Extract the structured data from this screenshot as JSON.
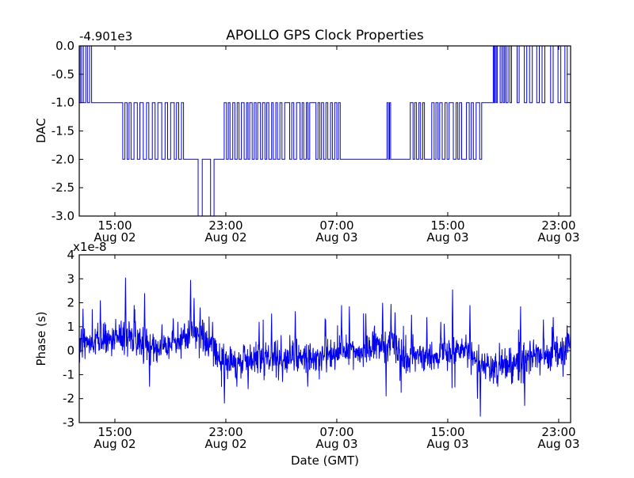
{
  "figure_title": "APOLLO GPS Clock Properties",
  "accent_color": "#0000ee",
  "chart_data": [
    {
      "type": "line",
      "subtype": "step",
      "title": "APOLLO GPS Clock Properties",
      "ylabel": "DAC",
      "xlabel": "",
      "offset_text": "-4.901e3",
      "y_offset_value": -4901,
      "ylim": [
        -3.0,
        0.0
      ],
      "yticks": [
        {
          "v": 0.0,
          "label": "0.0"
        },
        {
          "v": -0.5,
          "label": "-0.5"
        },
        {
          "v": -1.0,
          "label": "-1.0"
        },
        {
          "v": -1.5,
          "label": "-1.5"
        },
        {
          "v": -2.0,
          "label": "-2.0"
        },
        {
          "v": -2.5,
          "label": "-2.5"
        },
        {
          "v": -3.0,
          "label": "-3.0"
        }
      ],
      "x_unit": "hours since Aug 02 00:00 GMT",
      "xlim_hours": [
        12.43,
        47.86
      ],
      "xticks": [
        {
          "t": 15,
          "time": "15:00",
          "date": "Aug 02"
        },
        {
          "t": 23,
          "time": "23:00",
          "date": "Aug 02"
        },
        {
          "t": 31,
          "time": "07:00",
          "date": "Aug 03"
        },
        {
          "t": 39,
          "time": "15:00",
          "date": "Aug 03"
        },
        {
          "t": 47,
          "time": "23:00",
          "date": "Aug 03"
        }
      ],
      "grid": false,
      "legend": null,
      "step_points": [
        [
          12.43,
          0
        ],
        [
          12.5,
          -1
        ],
        [
          12.6,
          0
        ],
        [
          12.73,
          -1
        ],
        [
          12.9,
          0
        ],
        [
          13.02,
          -1
        ],
        [
          13.18,
          0
        ],
        [
          13.32,
          -1
        ],
        [
          15.57,
          -2
        ],
        [
          15.72,
          -1
        ],
        [
          15.88,
          -2
        ],
        [
          16.02,
          -1
        ],
        [
          16.17,
          -2
        ],
        [
          16.38,
          -1
        ],
        [
          16.62,
          -2
        ],
        [
          16.8,
          -1
        ],
        [
          17.05,
          -2
        ],
        [
          17.28,
          -1
        ],
        [
          17.45,
          -2
        ],
        [
          17.7,
          -1
        ],
        [
          17.9,
          -2
        ],
        [
          18.1,
          -1
        ],
        [
          18.38,
          -2
        ],
        [
          18.62,
          -1
        ],
        [
          18.8,
          -2
        ],
        [
          19.02,
          -1
        ],
        [
          19.28,
          -2
        ],
        [
          19.45,
          -1
        ],
        [
          19.6,
          -2
        ],
        [
          19.8,
          -1
        ],
        [
          19.95,
          -2
        ],
        [
          21.0,
          -3
        ],
        [
          21.3,
          -2
        ],
        [
          21.9,
          -3
        ],
        [
          22.15,
          -2
        ],
        [
          22.88,
          -1
        ],
        [
          23.05,
          -2
        ],
        [
          23.18,
          -1
        ],
        [
          23.3,
          -2
        ],
        [
          23.5,
          -1
        ],
        [
          23.65,
          -2
        ],
        [
          23.82,
          -1
        ],
        [
          23.95,
          -2
        ],
        [
          24.12,
          -1
        ],
        [
          24.32,
          -2
        ],
        [
          24.5,
          -1
        ],
        [
          24.6,
          -2
        ],
        [
          24.72,
          -1
        ],
        [
          24.9,
          -2
        ],
        [
          25.05,
          -1
        ],
        [
          25.18,
          -2
        ],
        [
          25.3,
          -1
        ],
        [
          25.5,
          -2
        ],
        [
          25.65,
          -1
        ],
        [
          25.82,
          -2
        ],
        [
          25.95,
          -1
        ],
        [
          26.1,
          -2
        ],
        [
          26.3,
          -1
        ],
        [
          26.42,
          -2
        ],
        [
          26.6,
          -1
        ],
        [
          26.72,
          -2
        ],
        [
          26.9,
          -1
        ],
        [
          27.05,
          -2
        ],
        [
          27.25,
          -1
        ],
        [
          27.6,
          -2
        ],
        [
          27.75,
          -1
        ],
        [
          27.9,
          -2
        ],
        [
          28.1,
          -1
        ],
        [
          28.35,
          -2
        ],
        [
          28.5,
          -1
        ],
        [
          28.62,
          -2
        ],
        [
          28.8,
          -1
        ],
        [
          28.92,
          -2
        ],
        [
          29.05,
          -1
        ],
        [
          29.5,
          -2
        ],
        [
          29.65,
          -1
        ],
        [
          29.78,
          -2
        ],
        [
          29.9,
          -1
        ],
        [
          30.05,
          -2
        ],
        [
          30.22,
          -1
        ],
        [
          30.35,
          -2
        ],
        [
          30.55,
          -1
        ],
        [
          30.68,
          -2
        ],
        [
          30.85,
          -1
        ],
        [
          31.0,
          -2
        ],
        [
          31.12,
          -1
        ],
        [
          31.25,
          -2
        ],
        [
          34.62,
          -1
        ],
        [
          34.72,
          -2
        ],
        [
          34.8,
          -1
        ],
        [
          34.88,
          -2
        ],
        [
          36.3,
          -1
        ],
        [
          36.5,
          -2
        ],
        [
          36.62,
          -1
        ],
        [
          36.75,
          -2
        ],
        [
          36.92,
          -1
        ],
        [
          37.05,
          -2
        ],
        [
          37.2,
          -1
        ],
        [
          37.32,
          -2
        ],
        [
          37.85,
          -1
        ],
        [
          38.02,
          -2
        ],
        [
          38.15,
          -1
        ],
        [
          38.3,
          -2
        ],
        [
          38.42,
          -1
        ],
        [
          38.6,
          -2
        ],
        [
          38.8,
          -1
        ],
        [
          38.95,
          -2
        ],
        [
          39.1,
          -1
        ],
        [
          39.4,
          -2
        ],
        [
          39.6,
          -1
        ],
        [
          39.72,
          -2
        ],
        [
          39.85,
          -1
        ],
        [
          40.0,
          -2
        ],
        [
          40.35,
          -1
        ],
        [
          40.55,
          -2
        ],
        [
          40.7,
          -1
        ],
        [
          40.85,
          -2
        ],
        [
          41.05,
          -1
        ],
        [
          41.3,
          -2
        ],
        [
          41.45,
          -1
        ],
        [
          42.28,
          0
        ],
        [
          42.35,
          -1
        ],
        [
          42.42,
          0
        ],
        [
          42.5,
          -1
        ],
        [
          42.58,
          0
        ],
        [
          42.78,
          -1
        ],
        [
          42.9,
          0
        ],
        [
          43.0,
          -1
        ],
        [
          43.1,
          0
        ],
        [
          43.2,
          -1
        ],
        [
          43.35,
          0
        ],
        [
          43.48,
          -1
        ],
        [
          43.6,
          0
        ],
        [
          44.0,
          -1
        ],
        [
          44.15,
          0
        ],
        [
          44.52,
          -1
        ],
        [
          44.7,
          0
        ],
        [
          44.9,
          -1
        ],
        [
          45.1,
          0
        ],
        [
          45.42,
          -1
        ],
        [
          45.6,
          0
        ],
        [
          45.8,
          -1
        ],
        [
          46.0,
          0
        ],
        [
          46.42,
          -1
        ],
        [
          46.6,
          0
        ],
        [
          46.95,
          -1
        ],
        [
          47.15,
          0
        ],
        [
          47.45,
          -1
        ],
        [
          47.62,
          0
        ],
        [
          47.86,
          0
        ]
      ]
    },
    {
      "type": "line",
      "subtype": "noisy-timeseries",
      "title": "",
      "ylabel": "Phase (s)",
      "xlabel": "Date (GMT)",
      "multiplier_text": "x1e-8",
      "y_scale_factor": 1e-08,
      "ylim": [
        -3,
        4
      ],
      "yticks": [
        {
          "v": 4,
          "label": "4"
        },
        {
          "v": 3,
          "label": "3"
        },
        {
          "v": 2,
          "label": "2"
        },
        {
          "v": 1,
          "label": "1"
        },
        {
          "v": 0,
          "label": "0"
        },
        {
          "v": -1,
          "label": "-1"
        },
        {
          "v": -2,
          "label": "-2"
        },
        {
          "v": -3,
          "label": "-3"
        }
      ],
      "x_unit": "hours since Aug 02 00:00 GMT",
      "xlim_hours": [
        12.43,
        47.86
      ],
      "xticks": [
        {
          "t": 15,
          "time": "15:00",
          "date": "Aug 02"
        },
        {
          "t": 23,
          "time": "23:00",
          "date": "Aug 02"
        },
        {
          "t": 31,
          "time": "07:00",
          "date": "Aug 03"
        },
        {
          "t": 39,
          "time": "15:00",
          "date": "Aug 03"
        },
        {
          "t": 47,
          "time": "23:00",
          "date": "Aug 03"
        }
      ],
      "grid": false,
      "legend": null,
      "noise_sd": 0.33,
      "n_points": 1700,
      "seed": 42,
      "trend_points": [
        [
          12.43,
          0.1
        ],
        [
          13.2,
          0.4
        ],
        [
          14.5,
          0.5
        ],
        [
          15.5,
          0.6
        ],
        [
          16.3,
          0.45
        ],
        [
          17.2,
          0.35
        ],
        [
          18.0,
          0.05
        ],
        [
          18.8,
          0.25
        ],
        [
          19.8,
          0.45
        ],
        [
          20.5,
          0.85
        ],
        [
          21.0,
          0.7
        ],
        [
          21.8,
          0.2
        ],
        [
          22.6,
          -0.35
        ],
        [
          23.4,
          -0.55
        ],
        [
          24.5,
          -0.35
        ],
        [
          25.5,
          -0.35
        ],
        [
          26.5,
          -0.3
        ],
        [
          27.5,
          -0.3
        ],
        [
          28.5,
          -0.25
        ],
        [
          29.5,
          -0.35
        ],
        [
          30.5,
          -0.2
        ],
        [
          31.3,
          0.0
        ],
        [
          32.0,
          0.1
        ],
        [
          32.8,
          -0.1
        ],
        [
          33.8,
          0.2
        ],
        [
          34.5,
          0.4
        ],
        [
          35.2,
          0.15
        ],
        [
          35.9,
          -0.45
        ],
        [
          36.8,
          -0.25
        ],
        [
          37.8,
          -0.2
        ],
        [
          38.8,
          -0.1
        ],
        [
          39.5,
          0.0
        ],
        [
          40.3,
          -0.05
        ],
        [
          41.2,
          -0.45
        ],
        [
          42.2,
          -0.7
        ],
        [
          43.2,
          -0.6
        ],
        [
          44.2,
          -0.35
        ],
        [
          45.0,
          -0.3
        ],
        [
          45.8,
          -0.3
        ],
        [
          46.6,
          -0.15
        ],
        [
          47.3,
          -0.05
        ],
        [
          47.86,
          0.3
        ]
      ],
      "spike_points": [
        [
          12.7,
          1.75
        ],
        [
          13.95,
          2.1
        ],
        [
          15.77,
          3.05
        ],
        [
          16.4,
          1.9
        ],
        [
          17.15,
          2.4
        ],
        [
          17.5,
          -1.5
        ],
        [
          18.4,
          1.1
        ],
        [
          19.2,
          1.35
        ],
        [
          20.45,
          2.95
        ],
        [
          20.7,
          2.2
        ],
        [
          21.15,
          1.8
        ],
        [
          22.05,
          1.2
        ],
        [
          22.9,
          -2.2
        ],
        [
          23.8,
          -1.5
        ],
        [
          24.6,
          -1.6
        ],
        [
          25.4,
          1.2
        ],
        [
          26.3,
          1.55
        ],
        [
          27.1,
          -1.3
        ],
        [
          28.0,
          1.65
        ],
        [
          28.9,
          -1.5
        ],
        [
          30.2,
          1.3
        ],
        [
          31.35,
          1.9
        ],
        [
          31.9,
          1.85
        ],
        [
          33.1,
          1.55
        ],
        [
          34.3,
          2.0
        ],
        [
          34.55,
          -1.9
        ],
        [
          34.9,
          1.95
        ],
        [
          35.2,
          1.6
        ],
        [
          36.4,
          1.5
        ],
        [
          37.5,
          1.4
        ],
        [
          38.5,
          1.2
        ],
        [
          39.35,
          2.55
        ],
        [
          40.6,
          1.9
        ],
        [
          41.15,
          -2.0
        ],
        [
          41.35,
          -2.75
        ],
        [
          42.6,
          -1.5
        ],
        [
          43.6,
          -1.4
        ],
        [
          44.25,
          1.85
        ],
        [
          44.55,
          -2.3
        ],
        [
          45.9,
          1.3
        ],
        [
          46.6,
          1.4
        ],
        [
          47.6,
          1.05
        ]
      ]
    }
  ]
}
